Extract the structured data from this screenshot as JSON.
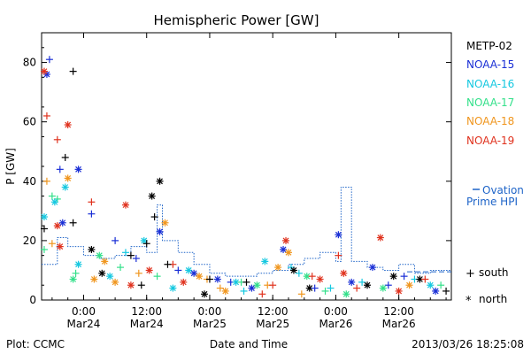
{
  "chart_data": {
    "type": "scatter",
    "title": "Hemispheric Power [GW]",
    "xlabel": "Date and Time",
    "ylabel": "P [GW]",
    "xlim": [
      "2013-03-23T16:00",
      "2013-03-26T22:00"
    ],
    "ylim": [
      0,
      90
    ],
    "yticks": [
      0,
      20,
      40,
      60,
      80
    ],
    "xticks": [
      {
        "time": "2013-03-24T00:00",
        "line1": "0:00",
        "line2": "Mar24"
      },
      {
        "time": "2013-03-24T12:00",
        "line1": "12:00",
        "line2": "Mar24"
      },
      {
        "time": "2013-03-25T00:00",
        "line1": "0:00",
        "line2": "Mar25"
      },
      {
        "time": "2013-03-25T12:00",
        "line1": "12:00",
        "line2": "Mar25"
      },
      {
        "time": "2013-03-26T00:00",
        "line1": "0:00",
        "line2": "Mar26"
      },
      {
        "time": "2013-03-26T12:00",
        "line1": "12:00",
        "line2": "Mar26"
      }
    ],
    "legend": {
      "placement": "right",
      "satellites": [
        {
          "name": "METP-02",
          "color": "#000000"
        },
        {
          "name": "NOAA-15",
          "color": "#1a2fd6"
        },
        {
          "name": "NOAA-16",
          "color": "#15c8e0"
        },
        {
          "name": "NOAA-17",
          "color": "#33e08a"
        },
        {
          "name": "NOAA-18",
          "color": "#f0961e"
        },
        {
          "name": "NOAA-19",
          "color": "#e0321e"
        }
      ],
      "ovation_line1": "Ovation",
      "ovation_line2": "Prime HPI",
      "ovation_color": "#1e64c8",
      "south_label": "south",
      "north_label": "north"
    },
    "ovation_series": {
      "name": "Ovation Prime HPI",
      "times": [
        "2013-03-23T16:00",
        "2013-03-23T19:00",
        "2013-03-23T21:00",
        "2013-03-24T00:00",
        "2013-03-24T03:00",
        "2013-03-24T06:00",
        "2013-03-24T09:00",
        "2013-03-24T12:00",
        "2013-03-24T14:00",
        "2013-03-24T15:00",
        "2013-03-24T18:00",
        "2013-03-24T21:00",
        "2013-03-25T00:00",
        "2013-03-25T03:00",
        "2013-03-25T06:00",
        "2013-03-25T09:00",
        "2013-03-25T12:00",
        "2013-03-25T15:00",
        "2013-03-25T18:00",
        "2013-03-25T21:00",
        "2013-03-26T00:00",
        "2013-03-26T01:00",
        "2013-03-26T03:00",
        "2013-03-26T06:00",
        "2013-03-26T09:00",
        "2013-03-26T12:00",
        "2013-03-26T15:00",
        "2013-03-26T18:00",
        "2013-03-26T22:00"
      ],
      "values": [
        12,
        21,
        18,
        15,
        14,
        15,
        18,
        16,
        32,
        20,
        16,
        12,
        9,
        8,
        8,
        9,
        10,
        12,
        14,
        16,
        13,
        38,
        13,
        11,
        10,
        12,
        9,
        10,
        10
      ]
    },
    "points": [
      {
        "sat": "NOAA-15",
        "hemi": "south",
        "time": "2013-03-23T17:30",
        "value": 81
      },
      {
        "sat": "NOAA-15",
        "hemi": "north",
        "time": "2013-03-23T17:00",
        "value": 76
      },
      {
        "sat": "NOAA-19",
        "hemi": "north",
        "time": "2013-03-23T16:30",
        "value": 77
      },
      {
        "sat": "NOAA-19",
        "hemi": "south",
        "time": "2013-03-23T17:00",
        "value": 62
      },
      {
        "sat": "NOAA-19",
        "hemi": "north",
        "time": "2013-03-23T21:00",
        "value": 59
      },
      {
        "sat": "NOAA-19",
        "hemi": "south",
        "time": "2013-03-23T19:00",
        "value": 54
      },
      {
        "sat": "METP-02",
        "hemi": "south",
        "time": "2013-03-23T22:00",
        "value": 77
      },
      {
        "sat": "METP-02",
        "hemi": "south",
        "time": "2013-03-23T20:30",
        "value": 48
      },
      {
        "sat": "NOAA-15",
        "hemi": "south",
        "time": "2013-03-23T19:30",
        "value": 44
      },
      {
        "sat": "NOAA-15",
        "hemi": "north",
        "time": "2013-03-23T23:00",
        "value": 44
      },
      {
        "sat": "NOAA-18",
        "hemi": "north",
        "time": "2013-03-23T21:00",
        "value": 41
      },
      {
        "sat": "METP-02",
        "hemi": "north",
        "time": "2013-03-24T14:30",
        "value": 40
      },
      {
        "sat": "NOAA-18",
        "hemi": "south",
        "time": "2013-03-23T17:00",
        "value": 40
      },
      {
        "sat": "NOAA-16",
        "hemi": "north",
        "time": "2013-03-23T20:30",
        "value": 38
      },
      {
        "sat": "METP-02",
        "hemi": "north",
        "time": "2013-03-24T13:00",
        "value": 35
      },
      {
        "sat": "NOAA-17",
        "hemi": "south",
        "time": "2013-03-23T18:00",
        "value": 35
      },
      {
        "sat": "NOAA-17",
        "hemi": "south",
        "time": "2013-03-23T19:00",
        "value": 34
      },
      {
        "sat": "NOAA-16",
        "hemi": "north",
        "time": "2013-03-23T18:30",
        "value": 33
      },
      {
        "sat": "NOAA-19",
        "hemi": "south",
        "time": "2013-03-24T01:30",
        "value": 33
      },
      {
        "sat": "NOAA-19",
        "hemi": "north",
        "time": "2013-03-24T08:00",
        "value": 32
      },
      {
        "sat": "NOAA-15",
        "hemi": "south",
        "time": "2013-03-24T01:30",
        "value": 29
      },
      {
        "sat": "NOAA-16",
        "hemi": "north",
        "time": "2013-03-23T16:30",
        "value": 28
      },
      {
        "sat": "METP-02",
        "hemi": "south",
        "time": "2013-03-24T13:30",
        "value": 28
      },
      {
        "sat": "NOAA-18",
        "hemi": "north",
        "time": "2013-03-24T15:30",
        "value": 26
      },
      {
        "sat": "NOAA-19",
        "hemi": "north",
        "time": "2013-03-23T19:00",
        "value": 25
      },
      {
        "sat": "NOAA-15",
        "hemi": "north",
        "time": "2013-03-23T20:00",
        "value": 26
      },
      {
        "sat": "METP-02",
        "hemi": "south",
        "time": "2013-03-23T22:00",
        "value": 26
      },
      {
        "sat": "METP-02",
        "hemi": "south",
        "time": "2013-03-23T16:30",
        "value": 24
      },
      {
        "sat": "NOAA-15",
        "hemi": "north",
        "time": "2013-03-24T14:30",
        "value": 23
      },
      {
        "sat": "NOAA-15",
        "hemi": "north",
        "time": "2013-03-26T00:30",
        "value": 22
      },
      {
        "sat": "NOAA-19",
        "hemi": "north",
        "time": "2013-03-26T08:30",
        "value": 21
      },
      {
        "sat": "NOAA-19",
        "hemi": "north",
        "time": "2013-03-25T14:30",
        "value": 20
      },
      {
        "sat": "NOAA-15",
        "hemi": "south",
        "time": "2013-03-24T06:00",
        "value": 20
      },
      {
        "sat": "NOAA-16",
        "hemi": "north",
        "time": "2013-03-24T11:30",
        "value": 20
      },
      {
        "sat": "METP-02",
        "hemi": "south",
        "time": "2013-03-24T12:00",
        "value": 19
      },
      {
        "sat": "NOAA-18",
        "hemi": "south",
        "time": "2013-03-23T18:00",
        "value": 19
      },
      {
        "sat": "NOAA-19",
        "hemi": "north",
        "time": "2013-03-23T19:30",
        "value": 18
      },
      {
        "sat": "NOAA-17",
        "hemi": "south",
        "time": "2013-03-23T16:30",
        "value": 17
      },
      {
        "sat": "METP-02",
        "hemi": "north",
        "time": "2013-03-24T01:30",
        "value": 17
      },
      {
        "sat": "NOAA-15",
        "hemi": "north",
        "time": "2013-03-25T14:00",
        "value": 17
      },
      {
        "sat": "NOAA-16",
        "hemi": "south",
        "time": "2013-03-24T08:00",
        "value": 16
      },
      {
        "sat": "NOAA-18",
        "hemi": "north",
        "time": "2013-03-25T15:00",
        "value": 16
      },
      {
        "sat": "NOAA-19",
        "hemi": "south",
        "time": "2013-03-26T00:30",
        "value": 15
      },
      {
        "sat": "METP-02",
        "hemi": "south",
        "time": "2013-03-24T09:00",
        "value": 15
      },
      {
        "sat": "NOAA-17",
        "hemi": "north",
        "time": "2013-03-24T03:00",
        "value": 15
      },
      {
        "sat": "NOAA-15",
        "hemi": "south",
        "time": "2013-03-24T10:00",
        "value": 14
      },
      {
        "sat": "NOAA-16",
        "hemi": "north",
        "time": "2013-03-25T10:30",
        "value": 13
      },
      {
        "sat": "NOAA-18",
        "hemi": "north",
        "time": "2013-03-24T04:00",
        "value": 13
      },
      {
        "sat": "NOAA-16",
        "hemi": "north",
        "time": "2013-03-23T23:00",
        "value": 12
      },
      {
        "sat": "NOAA-19",
        "hemi": "south",
        "time": "2013-03-24T17:00",
        "value": 12
      },
      {
        "sat": "METP-02",
        "hemi": "south",
        "time": "2013-03-24T16:00",
        "value": 12
      },
      {
        "sat": "NOAA-15",
        "hemi": "north",
        "time": "2013-03-26T07:00",
        "value": 11
      },
      {
        "sat": "NOAA-17",
        "hemi": "south",
        "time": "2013-03-24T07:00",
        "value": 11
      },
      {
        "sat": "NOAA-18",
        "hemi": "north",
        "time": "2013-03-25T13:00",
        "value": 11
      },
      {
        "sat": "NOAA-16",
        "hemi": "south",
        "time": "2013-03-25T15:30",
        "value": 11
      },
      {
        "sat": "METP-02",
        "hemi": "north",
        "time": "2013-03-25T16:00",
        "value": 10
      },
      {
        "sat": "NOAA-19",
        "hemi": "north",
        "time": "2013-03-24T12:30",
        "value": 10
      },
      {
        "sat": "NOAA-15",
        "hemi": "south",
        "time": "2013-03-24T18:00",
        "value": 10
      },
      {
        "sat": "NOAA-16",
        "hemi": "north",
        "time": "2013-03-24T20:00",
        "value": 10
      },
      {
        "sat": "NOAA-17",
        "hemi": "south",
        "time": "2013-03-23T22:30",
        "value": 9
      },
      {
        "sat": "NOAA-18",
        "hemi": "south",
        "time": "2013-03-24T10:30",
        "value": 9
      },
      {
        "sat": "METP-02",
        "hemi": "north",
        "time": "2013-03-24T03:30",
        "value": 9
      },
      {
        "sat": "NOAA-19",
        "hemi": "north",
        "time": "2013-03-26T01:30",
        "value": 9
      },
      {
        "sat": "NOAA-15",
        "hemi": "north",
        "time": "2013-03-24T21:00",
        "value": 9
      },
      {
        "sat": "NOAA-16",
        "hemi": "south",
        "time": "2013-03-25T17:00",
        "value": 9
      },
      {
        "sat": "NOAA-17",
        "hemi": "north",
        "time": "2013-03-25T18:30",
        "value": 8
      },
      {
        "sat": "NOAA-18",
        "hemi": "north",
        "time": "2013-03-24T22:00",
        "value": 8
      },
      {
        "sat": "METP-02",
        "hemi": "north",
        "time": "2013-03-26T11:00",
        "value": 8
      },
      {
        "sat": "NOAA-19",
        "hemi": "south",
        "time": "2013-03-25T19:30",
        "value": 8
      },
      {
        "sat": "NOAA-15",
        "hemi": "south",
        "time": "2013-03-26T13:00",
        "value": 8
      },
      {
        "sat": "NOAA-16",
        "hemi": "north",
        "time": "2013-03-24T05:00",
        "value": 8
      },
      {
        "sat": "NOAA-17",
        "hemi": "south",
        "time": "2013-03-24T14:00",
        "value": 8
      },
      {
        "sat": "NOAA-18",
        "hemi": "south",
        "time": "2013-03-24T23:30",
        "value": 7
      },
      {
        "sat": "METP-02",
        "hemi": "south",
        "time": "2013-03-25T00:00",
        "value": 7
      },
      {
        "sat": "NOAA-19",
        "hemi": "north",
        "time": "2013-03-25T21:00",
        "value": 7
      },
      {
        "sat": "NOAA-15",
        "hemi": "north",
        "time": "2013-03-25T01:30",
        "value": 7
      },
      {
        "sat": "NOAA-16",
        "hemi": "south",
        "time": "2013-03-26T15:00",
        "value": 7
      },
      {
        "sat": "NOAA-17",
        "hemi": "north",
        "time": "2013-03-23T22:00",
        "value": 7
      },
      {
        "sat": "NOAA-18",
        "hemi": "north",
        "time": "2013-03-24T02:00",
        "value": 7
      },
      {
        "sat": "METP-02",
        "hemi": "north",
        "time": "2013-03-26T16:00",
        "value": 7
      },
      {
        "sat": "NOAA-19",
        "hemi": "south",
        "time": "2013-03-26T17:00",
        "value": 7
      },
      {
        "sat": "NOAA-15",
        "hemi": "south",
        "time": "2013-03-25T04:00",
        "value": 6
      },
      {
        "sat": "NOAA-16",
        "hemi": "north",
        "time": "2013-03-25T05:00",
        "value": 6
      },
      {
        "sat": "NOAA-17",
        "hemi": "south",
        "time": "2013-03-25T06:00",
        "value": 6
      },
      {
        "sat": "NOAA-18",
        "hemi": "north",
        "time": "2013-03-24T06:00",
        "value": 6
      },
      {
        "sat": "METP-02",
        "hemi": "south",
        "time": "2013-03-25T07:00",
        "value": 6
      },
      {
        "sat": "NOAA-19",
        "hemi": "north",
        "time": "2013-03-24T19:00",
        "value": 6
      },
      {
        "sat": "NOAA-15",
        "hemi": "north",
        "time": "2013-03-26T03:00",
        "value": 6
      },
      {
        "sat": "NOAA-16",
        "hemi": "south",
        "time": "2013-03-26T05:00",
        "value": 6
      },
      {
        "sat": "NOAA-17",
        "hemi": "north",
        "time": "2013-03-25T09:00",
        "value": 5
      },
      {
        "sat": "NOAA-18",
        "hemi": "south",
        "time": "2013-03-25T11:00",
        "value": 5
      },
      {
        "sat": "METP-02",
        "hemi": "north",
        "time": "2013-03-26T06:00",
        "value": 5
      },
      {
        "sat": "NOAA-19",
        "hemi": "south",
        "time": "2013-03-25T12:00",
        "value": 5
      },
      {
        "sat": "NOAA-15",
        "hemi": "south",
        "time": "2013-03-26T10:00",
        "value": 5
      },
      {
        "sat": "NOAA-16",
        "hemi": "north",
        "time": "2013-03-26T18:00",
        "value": 5
      },
      {
        "sat": "NOAA-17",
        "hemi": "south",
        "time": "2013-03-26T20:00",
        "value": 5
      },
      {
        "sat": "NOAA-18",
        "hemi": "north",
        "time": "2013-03-26T14:00",
        "value": 5
      },
      {
        "sat": "METP-02",
        "hemi": "south",
        "time": "2013-03-24T11:00",
        "value": 5
      },
      {
        "sat": "NOAA-19",
        "hemi": "north",
        "time": "2013-03-24T09:00",
        "value": 5
      },
      {
        "sat": "NOAA-15",
        "hemi": "north",
        "time": "2013-03-25T08:00",
        "value": 4
      },
      {
        "sat": "NOAA-16",
        "hemi": "south",
        "time": "2013-03-25T23:00",
        "value": 4
      },
      {
        "sat": "NOAA-17",
        "hemi": "north",
        "time": "2013-03-26T09:00",
        "value": 4
      },
      {
        "sat": "NOAA-18",
        "hemi": "south",
        "time": "2013-03-25T02:00",
        "value": 4
      },
      {
        "sat": "METP-02",
        "hemi": "north",
        "time": "2013-03-25T19:00",
        "value": 4
      },
      {
        "sat": "NOAA-19",
        "hemi": "south",
        "time": "2013-03-26T04:00",
        "value": 4
      },
      {
        "sat": "NOAA-15",
        "hemi": "south",
        "time": "2013-03-25T20:00",
        "value": 4
      },
      {
        "sat": "NOAA-16",
        "hemi": "north",
        "time": "2013-03-24T17:00",
        "value": 4
      },
      {
        "sat": "NOAA-17",
        "hemi": "south",
        "time": "2013-03-25T22:00",
        "value": 3
      },
      {
        "sat": "NOAA-18",
        "hemi": "north",
        "time": "2013-03-25T03:00",
        "value": 3
      },
      {
        "sat": "METP-02",
        "hemi": "south",
        "time": "2013-03-26T21:00",
        "value": 3
      },
      {
        "sat": "NOAA-19",
        "hemi": "north",
        "time": "2013-03-26T12:00",
        "value": 3
      },
      {
        "sat": "NOAA-15",
        "hemi": "north",
        "time": "2013-03-26T19:00",
        "value": 3
      },
      {
        "sat": "NOAA-16",
        "hemi": "south",
        "time": "2013-03-25T06:30",
        "value": 3
      },
      {
        "sat": "NOAA-17",
        "hemi": "north",
        "time": "2013-03-26T02:00",
        "value": 2
      },
      {
        "sat": "NOAA-18",
        "hemi": "south",
        "time": "2013-03-25T17:30",
        "value": 2
      },
      {
        "sat": "METP-02",
        "hemi": "north",
        "time": "2013-03-24T23:00",
        "value": 2
      },
      {
        "sat": "NOAA-19",
        "hemi": "south",
        "time": "2013-03-25T10:00",
        "value": 2
      }
    ]
  },
  "footer": {
    "plot_credit": "Plot: CCMC",
    "timestamp": "2013/03/26 18:25:08"
  }
}
